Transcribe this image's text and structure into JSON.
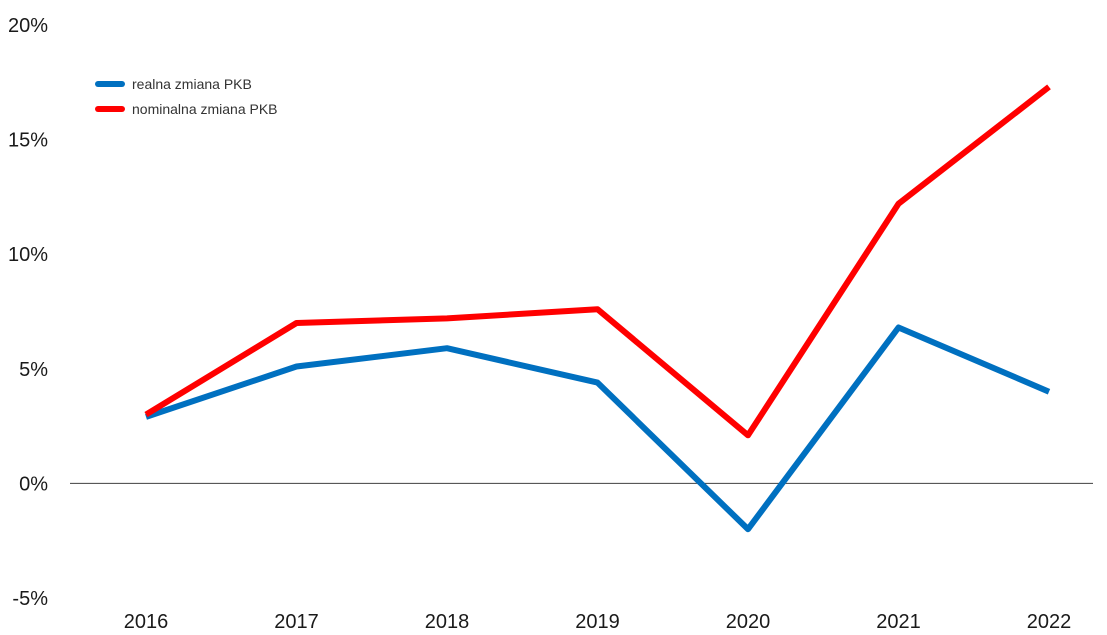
{
  "chart_data": {
    "type": "line",
    "title": "",
    "xlabel": "",
    "ylabel": "",
    "categories": [
      "2016",
      "2017",
      "2018",
      "2019",
      "2020",
      "2021",
      "2022"
    ],
    "y_ticks": [
      -5,
      0,
      5,
      10,
      15,
      20
    ],
    "y_tick_labels": [
      "-5%",
      "0%",
      "5%",
      "10%",
      "15%",
      "20%"
    ],
    "ylim": [
      -5,
      20
    ],
    "grid": false,
    "zero_line": true,
    "legend_position": "top-left",
    "series": [
      {
        "name": "realna zmiana PKB",
        "color": "#0070C0",
        "values": [
          2.9,
          5.1,
          5.9,
          4.4,
          -2.0,
          6.8,
          4.0
        ]
      },
      {
        "name": "nominalna zmiana PKB",
        "color": "#FF0000",
        "values": [
          3.0,
          7.0,
          7.2,
          7.6,
          2.1,
          12.2,
          17.3
        ]
      }
    ]
  }
}
